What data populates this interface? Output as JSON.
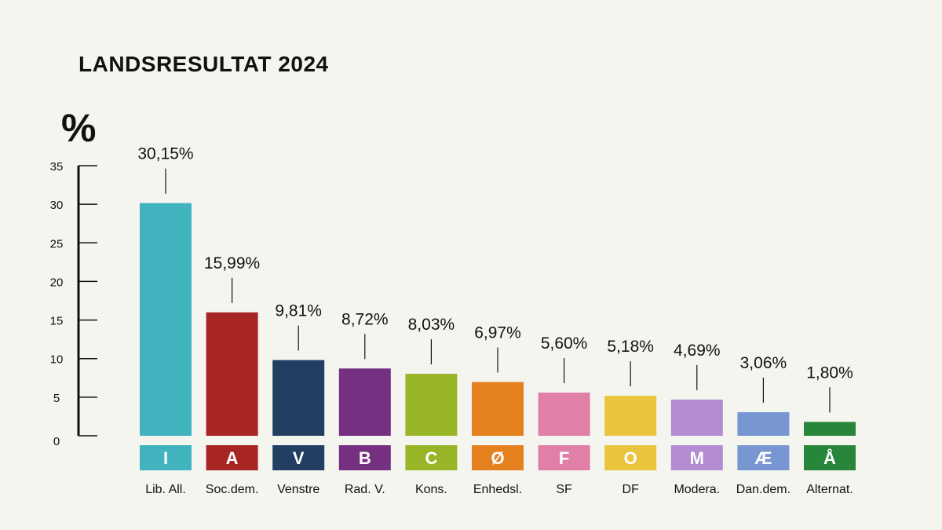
{
  "title": "LANDSRESULTAT 2024",
  "unit_label": "%",
  "chart_data": {
    "type": "bar",
    "title": "LANDSRESULTAT 2024",
    "ylabel": "%",
    "xlabel": "",
    "ylim": [
      0,
      35
    ],
    "yticks": [
      0,
      5,
      10,
      15,
      20,
      25,
      30,
      35
    ],
    "grid": false,
    "categories": [
      "Lib. All.",
      "Soc.dem.",
      "Venstre",
      "Rad. V.",
      "Kons.",
      "Enhedsl.",
      "SF",
      "DF",
      "Modera.",
      "Dan.dem.",
      "Alternat."
    ],
    "letters": [
      "I",
      "A",
      "V",
      "B",
      "C",
      "Ø",
      "F",
      "O",
      "M",
      "Æ",
      "Å"
    ],
    "values": [
      30.15,
      15.99,
      9.81,
      8.72,
      8.03,
      6.97,
      5.6,
      5.18,
      4.69,
      3.06,
      1.8
    ],
    "value_labels": [
      "30,15%",
      "15,99%",
      "9,81%",
      "8,72%",
      "8,03%",
      "6,97%",
      "5,60%",
      "5,18%",
      "4,69%",
      "3,06%",
      "1,80%"
    ],
    "colors": [
      "#40b3bf",
      "#a72522",
      "#223f63",
      "#763081",
      "#98b527",
      "#e5801e",
      "#e07fa8",
      "#e9c53e",
      "#b38cd1",
      "#7896d2",
      "#28863a"
    ]
  }
}
